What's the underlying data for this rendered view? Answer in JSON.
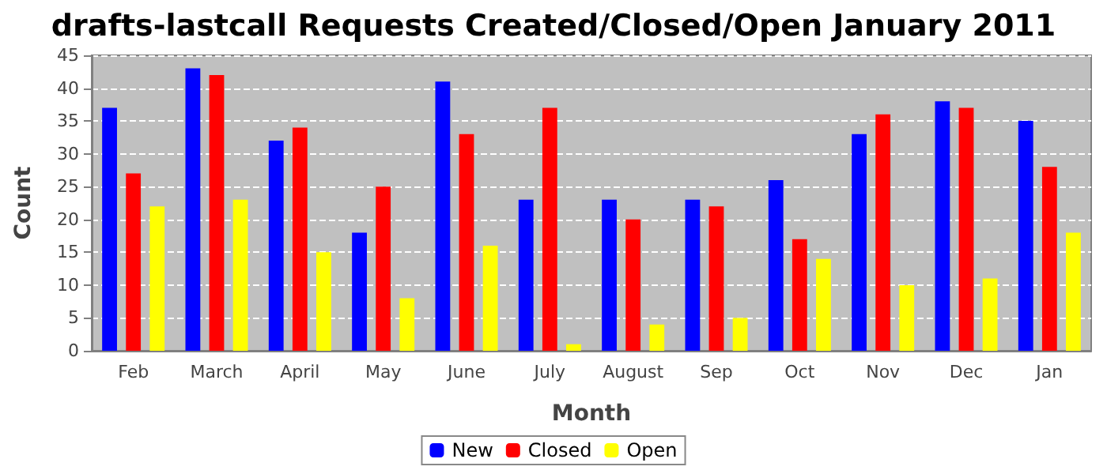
{
  "chart_data": {
    "type": "bar",
    "title": "drafts-lastcall Requests Created/Closed/Open January 2011",
    "xlabel": "Month",
    "ylabel": "Count",
    "categories": [
      "Feb",
      "March",
      "April",
      "May",
      "June",
      "July",
      "August",
      "Sep",
      "Oct",
      "Nov",
      "Dec",
      "Jan"
    ],
    "series": [
      {
        "name": "New",
        "color": "#0000ff",
        "values": [
          37,
          43,
          32,
          18,
          41,
          23,
          23,
          23,
          26,
          33,
          38,
          35
        ]
      },
      {
        "name": "Closed",
        "color": "#ff0000",
        "values": [
          27,
          42,
          34,
          25,
          33,
          37,
          20,
          22,
          17,
          36,
          37,
          28
        ]
      },
      {
        "name": "Open",
        "color": "#ffff00",
        "values": [
          22,
          23,
          15,
          8,
          16,
          1,
          4,
          5,
          14,
          10,
          11,
          18
        ]
      }
    ],
    "ylim": [
      0,
      45
    ],
    "yticks": [
      0,
      5,
      10,
      15,
      20,
      25,
      30,
      35,
      40,
      45
    ],
    "grid": "y",
    "legend": "bottom"
  }
}
